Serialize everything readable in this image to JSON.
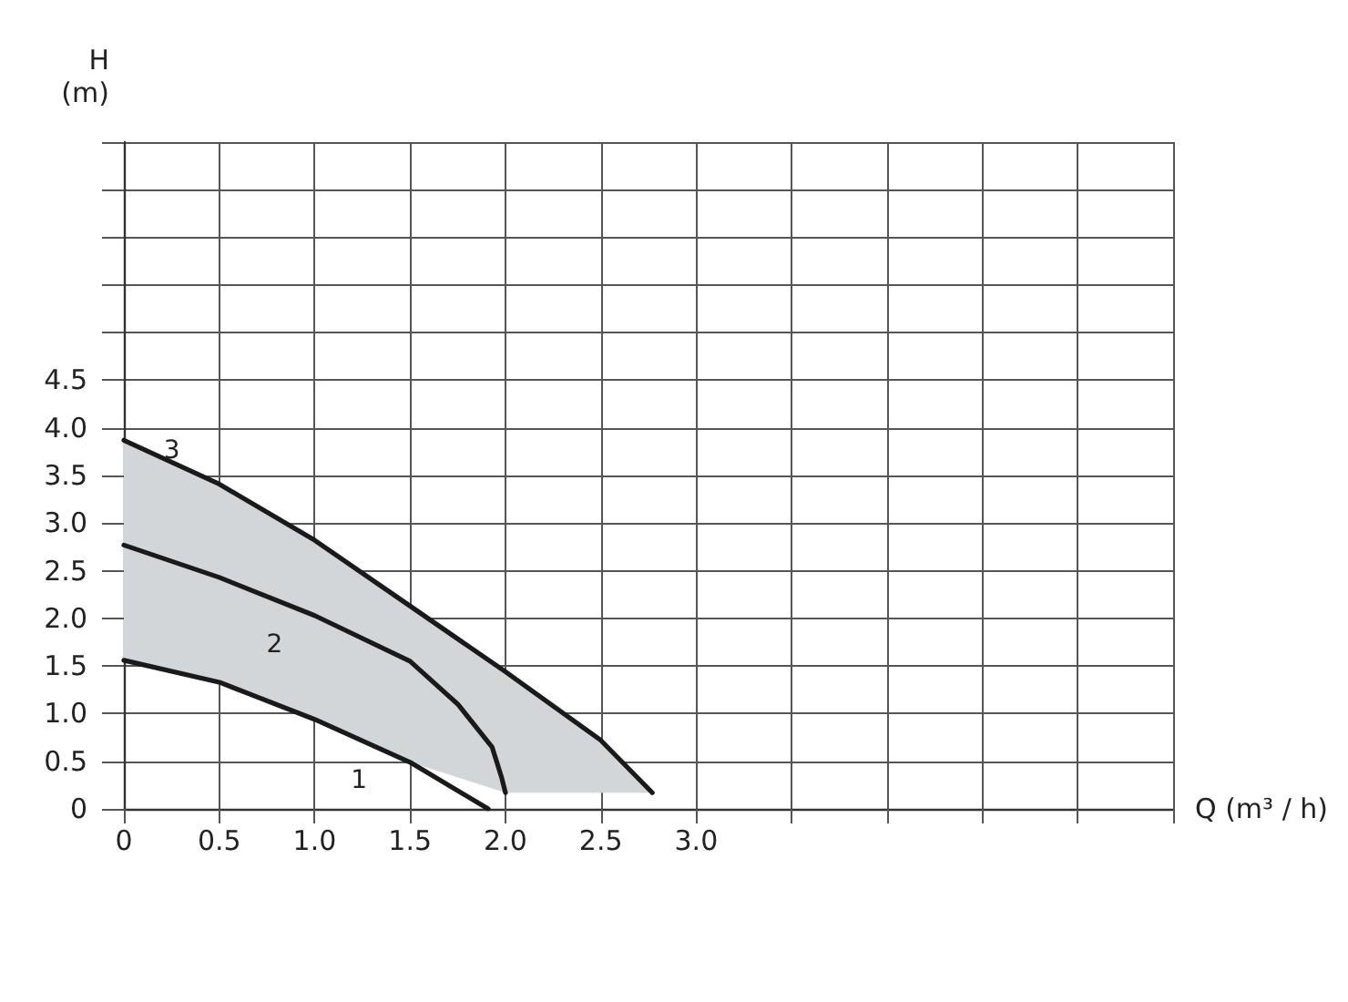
{
  "chart_data": {
    "type": "line",
    "xlabel": "Q (m³ / h)",
    "ylabel": "H\n(m)",
    "xlim": [
      0,
      5.5
    ],
    "xticks": [
      0,
      0.5,
      {
        "value": 1,
        "label": "1.0"
      },
      1.5,
      {
        "value": 2,
        "label": "2.0"
      },
      2.5,
      {
        "value": 3,
        "label": "3.0"
      },
      {
        "value": 3.5,
        "label": null
      },
      {
        "value": 4,
        "label": null
      },
      {
        "value": 4.5,
        "label": null
      },
      {
        "value": 5,
        "label": null
      },
      {
        "value": 5.5,
        "label": null
      }
    ],
    "ylim": [
      0,
      7
    ],
    "yticks": [
      0,
      0.5,
      {
        "value": 1,
        "label": "1.0"
      },
      1.5,
      {
        "value": 2,
        "label": "2.0"
      },
      2.5,
      {
        "value": 3,
        "label": "3.0"
      },
      3.5,
      {
        "value": 4,
        "label": "4.0"
      },
      4.5,
      {
        "value": 5,
        "label": null
      },
      {
        "value": 5.5,
        "label": null
      },
      {
        "value": 6,
        "label": null
      },
      {
        "value": 6.5,
        "label": null
      },
      {
        "value": 7,
        "label": null
      }
    ],
    "grid": true,
    "marker": "none",
    "line_style": "solid",
    "series": [
      {
        "name": "1",
        "color": "#1a1a1a",
        "x": [
          0,
          0.5,
          1,
          1.5,
          1.91
        ],
        "values": [
          1.56,
          1.33,
          0.94,
          0.49,
          0
        ]
      },
      {
        "name": "2",
        "color": "#1a1a1a",
        "x": [
          0,
          0.5,
          1,
          1.5,
          1.75,
          1.93,
          1.98,
          2
        ],
        "values": [
          2.77,
          2.43,
          2.03,
          1.55,
          1.1,
          0.65,
          0.33,
          0.17
        ]
      },
      {
        "name": "3",
        "color": "#1a1a1a",
        "x": [
          0,
          0.5,
          1,
          1.5,
          2,
          2.5,
          2.77
        ],
        "values": [
          3.87,
          3.41,
          2.82,
          2.13,
          1.44,
          0.72,
          0.17
        ],
        "lower": [
          1.56,
          1.33,
          0.94,
          0.49,
          0.17,
          0.17,
          0.17
        ],
        "upper": [
          3.87,
          3.41,
          2.82,
          2.13,
          1.44,
          0.72,
          0.17
        ]
      }
    ]
  }
}
